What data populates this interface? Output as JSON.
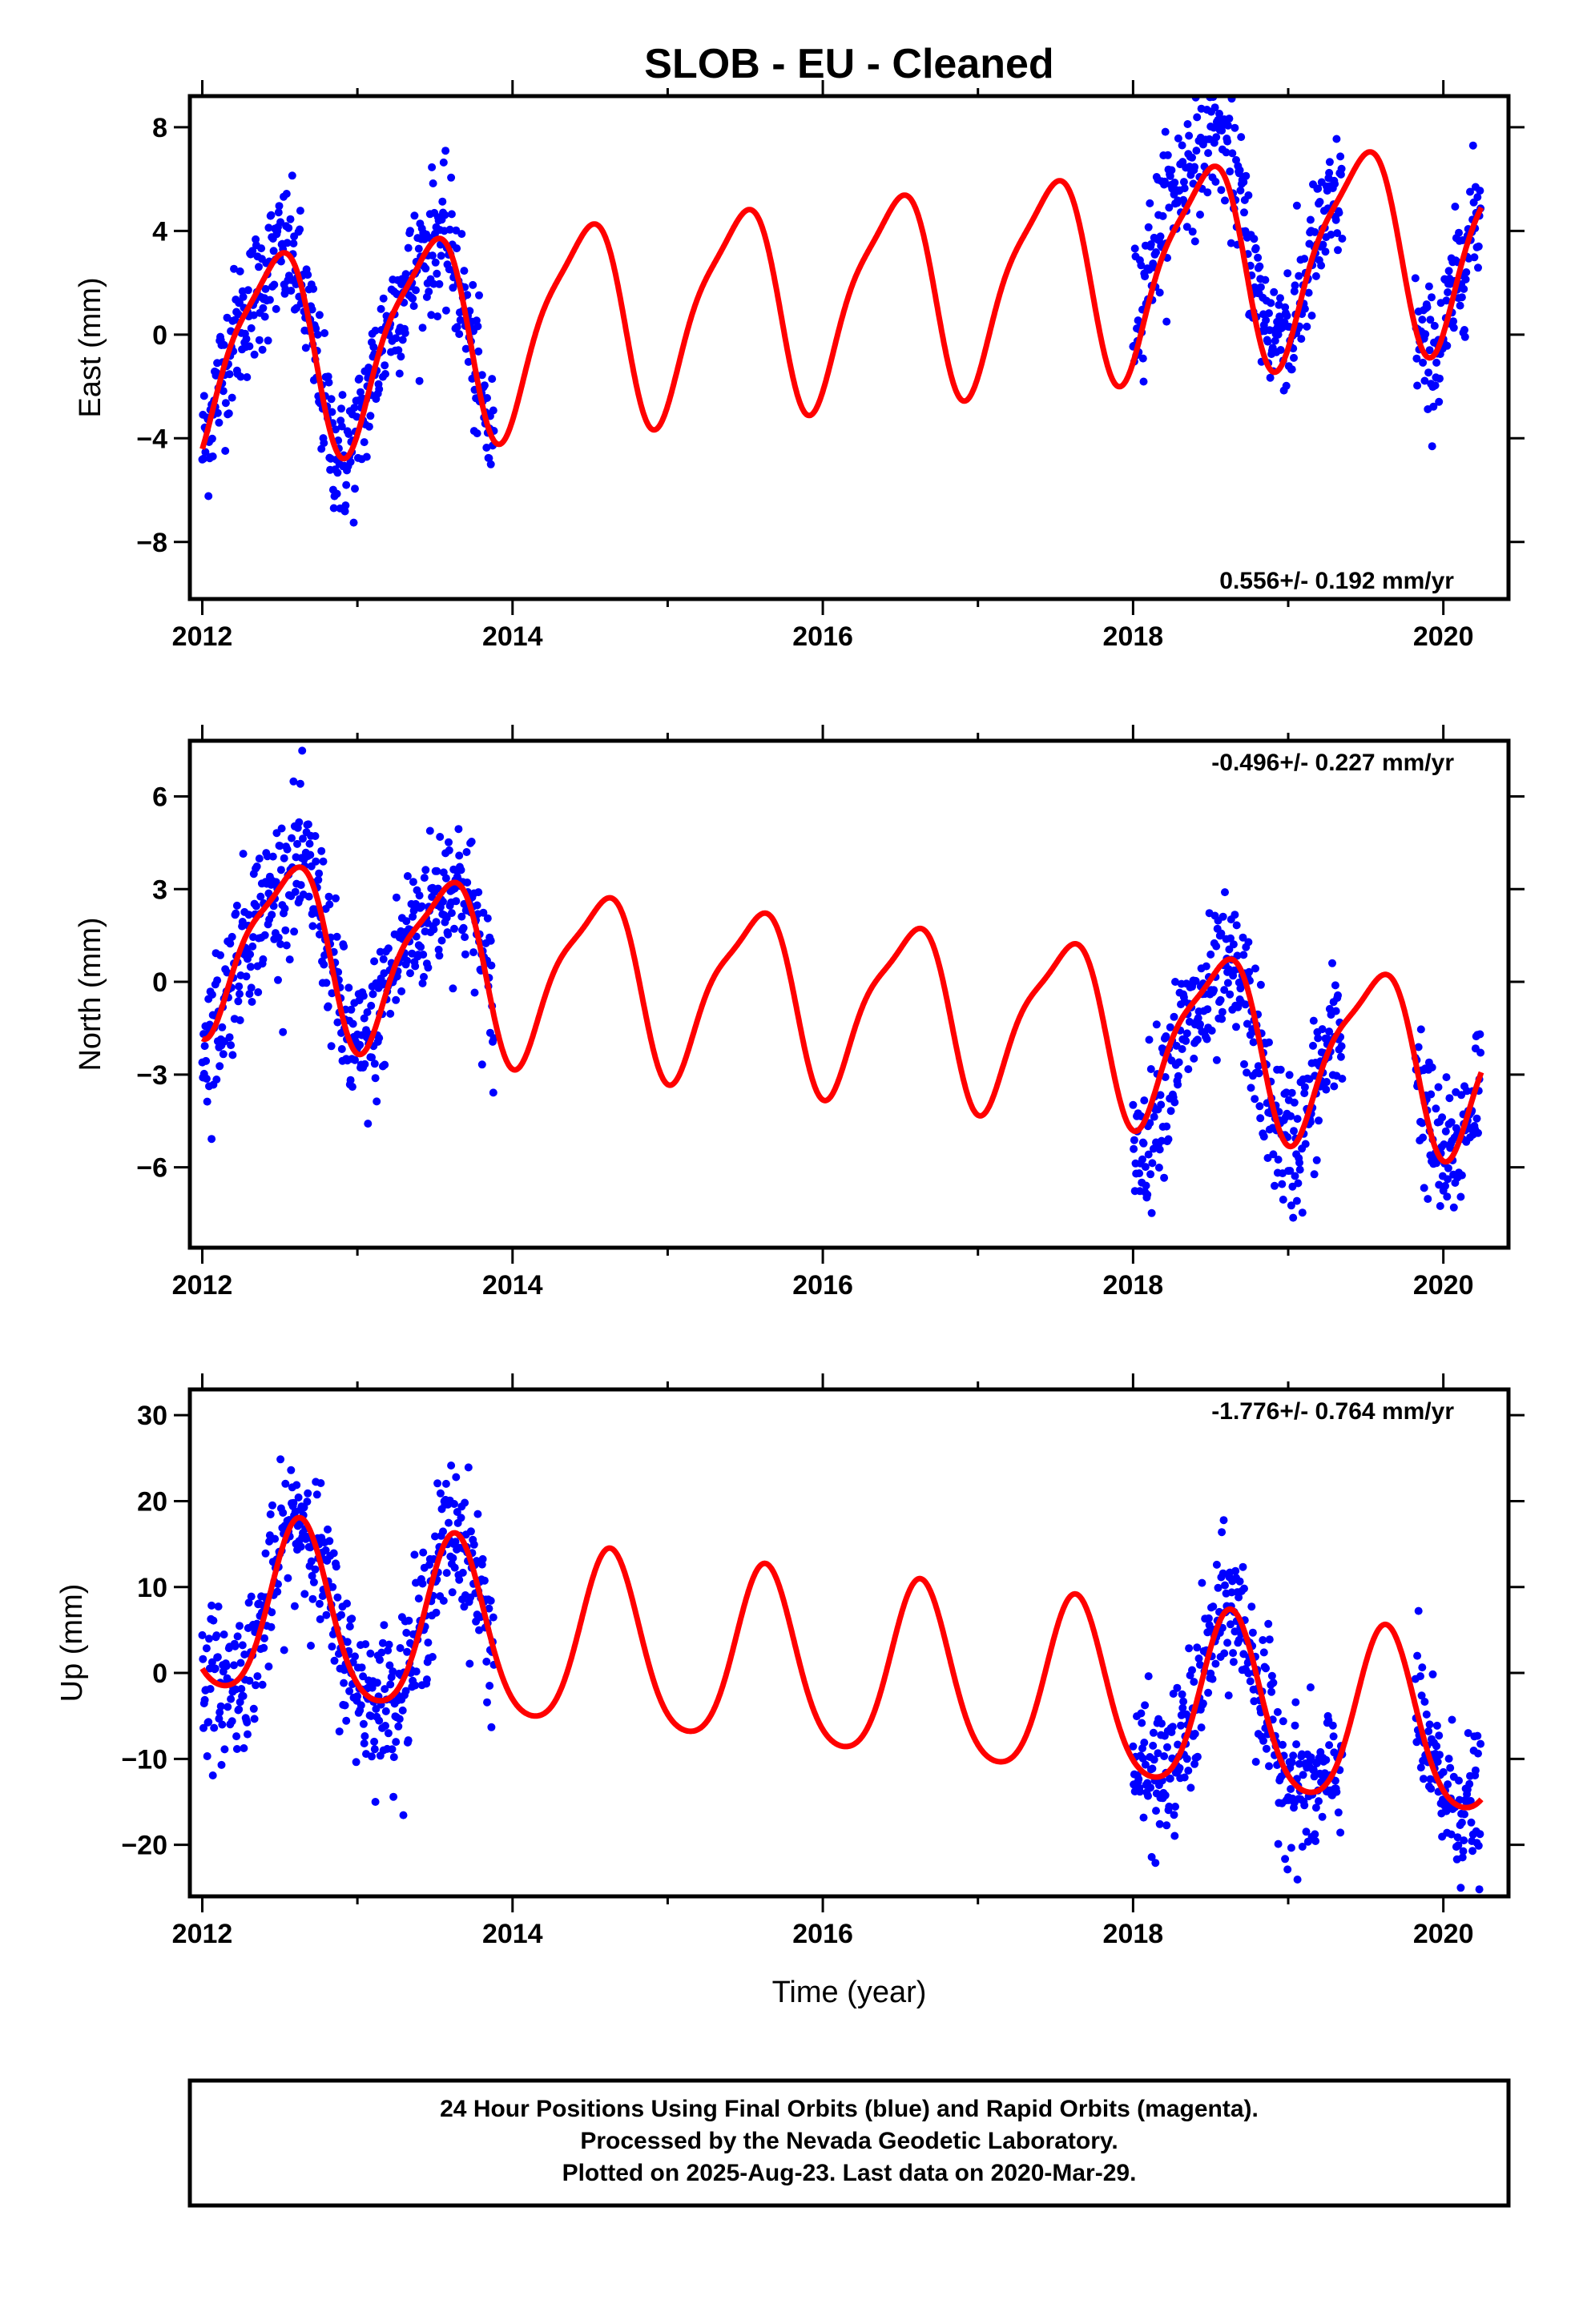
{
  "title": "SLOB  - EU - Cleaned",
  "xlabel": "Time (year)",
  "footer": {
    "line1": "24 Hour Positions Using Final Orbits (blue) and Rapid Orbits (magenta).",
    "line2": "Processed by the Nevada Geodetic Laboratory.",
    "line3": "Plotted on 2025-Aug-23. Last data on 2020-Mar-29."
  },
  "colors": {
    "data": "#0000ff",
    "model": "#ff0000",
    "axis": "#000000"
  },
  "chart_data": [
    {
      "type": "scatter",
      "ylabel": "East (mm)",
      "rate": "0.556+/- 0.192 mm/yr",
      "xlim": [
        2011.92,
        2020.42
      ],
      "ylim": [
        -10.2,
        9.2
      ],
      "xticks": [
        2012,
        2014,
        2016,
        2018,
        2020
      ],
      "yticks": [
        -8,
        -4,
        0,
        4,
        8
      ],
      "yticklabels": [
        "−8",
        "−4",
        "0",
        "4",
        "8"
      ],
      "model": {
        "a": -0.8,
        "b": 0.556,
        "amp1": 3.8,
        "phase1": 0.2,
        "amp2": 0.9,
        "phase2": 0.0
      },
      "segments": [
        [
          2012.0,
          2013.88
        ],
        [
          2018.0,
          2019.35
        ],
        [
          2019.82,
          2020.24
        ]
      ],
      "noise": 1.3,
      "offsets": [
        [
          2018.0,
          2019.0,
          1.5
        ]
      ]
    },
    {
      "type": "scatter",
      "ylabel": "North (mm)",
      "rate": "-0.496+/- 0.227 mm/yr",
      "xlim": [
        2011.92,
        2020.42
      ],
      "ylim": [
        -8.6,
        7.8
      ],
      "xticks": [
        2012,
        2014,
        2016,
        2018,
        2020
      ],
      "yticks": [
        -6,
        -3,
        0,
        3,
        6
      ],
      "yticklabels": [
        "−6",
        "−3",
        "0",
        "3",
        "6"
      ],
      "model": {
        "a": 1.4,
        "b": -0.496,
        "amp1": 2.7,
        "phase1": 0.3,
        "amp2": 0.7,
        "phase2": 0.1
      },
      "segments": [
        [
          2012.0,
          2013.88
        ],
        [
          2018.0,
          2019.35
        ],
        [
          2019.82,
          2020.24
        ]
      ],
      "noise": 1.2,
      "offsets": [
        [
          2018.0,
          2018.9,
          -0.6
        ]
      ]
    },
    {
      "type": "scatter",
      "ylabel": "Up (mm)",
      "rate": "-1.776+/- 0.764 mm/yr",
      "xlim": [
        2011.92,
        2020.42
      ],
      "ylim": [
        -26,
        33
      ],
      "xticks": [
        2012,
        2014,
        2016,
        2018,
        2020
      ],
      "yticks": [
        -20,
        -10,
        0,
        10,
        20,
        30
      ],
      "yticklabels": [
        "−20",
        "−10",
        "0",
        "10",
        "20",
        "30"
      ],
      "model": {
        "a": 7.5,
        "b": -1.776,
        "amp1": 10.2,
        "phase1": 0.38,
        "amp2": 1.5,
        "phase2": 0.0
      },
      "segments": [
        [
          2012.0,
          2013.88
        ],
        [
          2018.0,
          2019.35
        ],
        [
          2019.82,
          2020.24
        ]
      ],
      "noise": 4.2,
      "offsets": []
    }
  ]
}
